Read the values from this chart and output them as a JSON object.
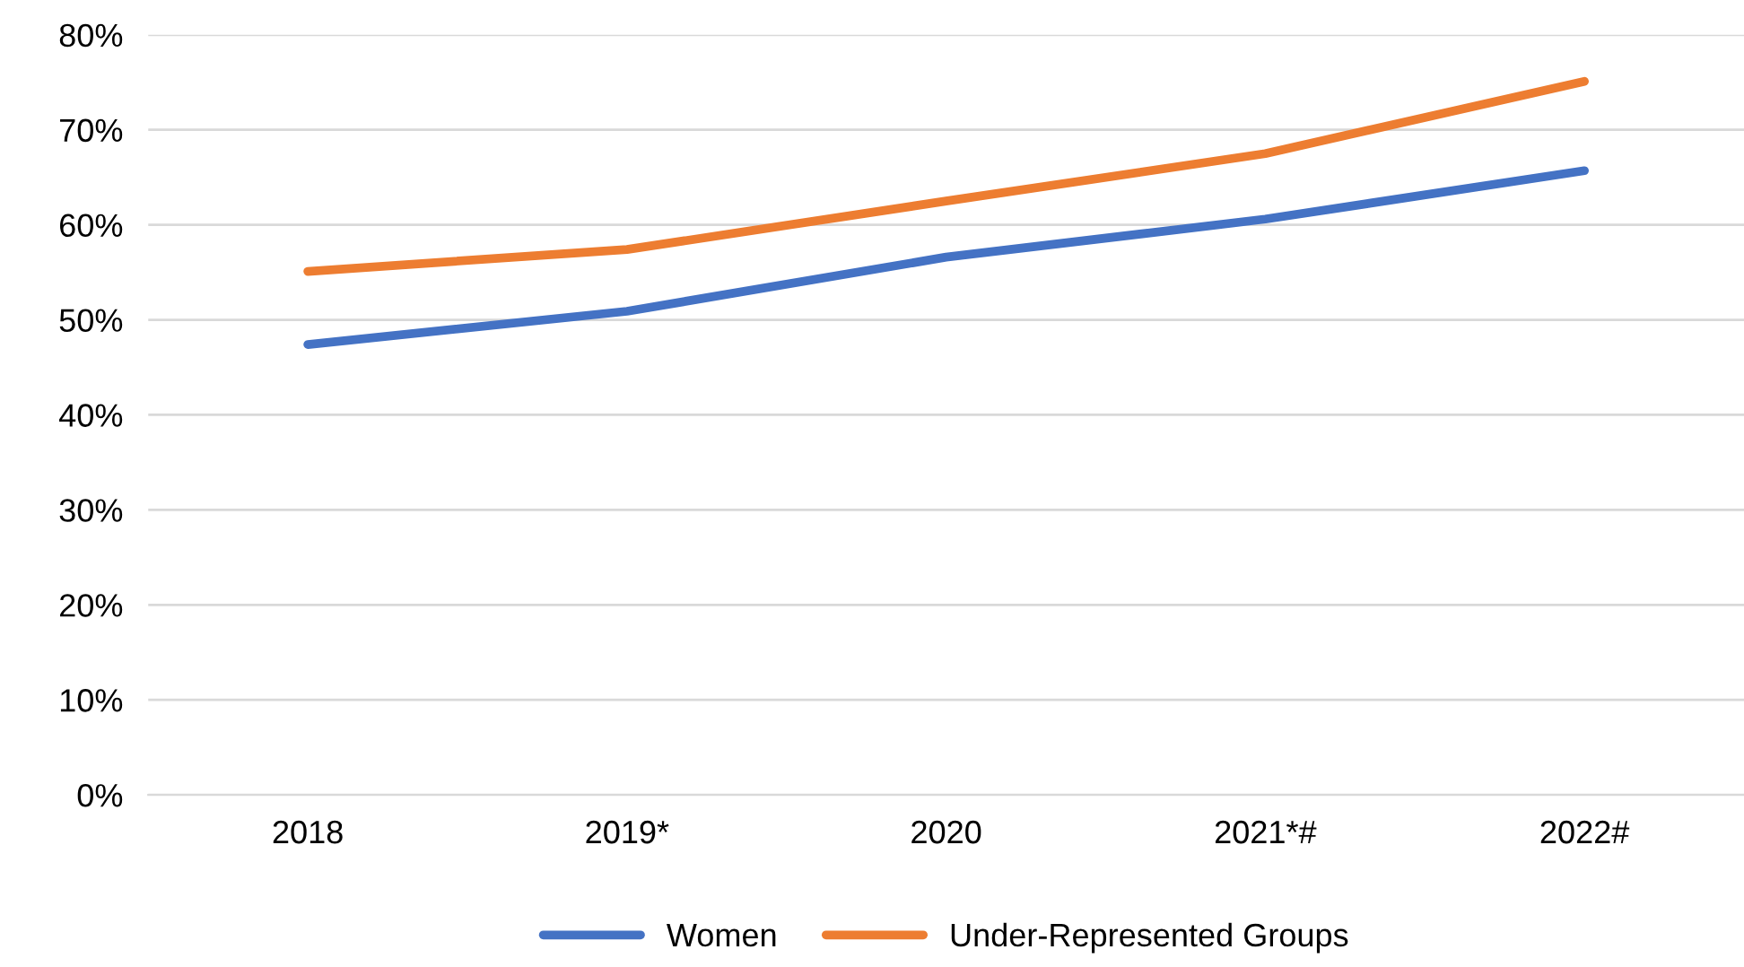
{
  "chart_data": {
    "type": "line",
    "categories": [
      "2018",
      "2019*",
      "2020",
      "2021*#",
      "2022#"
    ],
    "series": [
      {
        "name": "Women",
        "color": "#4472c4",
        "values": [
          47.4,
          50.9,
          56.6,
          60.6,
          65.7
        ]
      },
      {
        "name": "Under-Represented Groups",
        "color": "#ed7d31",
        "values": [
          55.1,
          57.4,
          62.5,
          67.5,
          75.1
        ]
      }
    ],
    "ylim": [
      0,
      80
    ],
    "yticks": [
      {
        "value": 0,
        "label": "0%"
      },
      {
        "value": 10,
        "label": "10%"
      },
      {
        "value": 20,
        "label": "20%"
      },
      {
        "value": 30,
        "label": "30%"
      },
      {
        "value": 40,
        "label": "40%"
      },
      {
        "value": 50,
        "label": "50%"
      },
      {
        "value": 60,
        "label": "60%"
      },
      {
        "value": 70,
        "label": "70%"
      },
      {
        "value": 80,
        "label": "80%"
      }
    ],
    "grid": "y",
    "legend": "bottom",
    "marker": "none",
    "line_style": "solid"
  }
}
